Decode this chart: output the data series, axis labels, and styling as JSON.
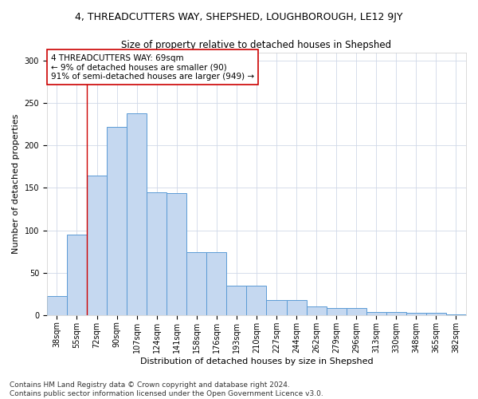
{
  "title": "4, THREADCUTTERS WAY, SHEPSHED, LOUGHBOROUGH, LE12 9JY",
  "subtitle": "Size of property relative to detached houses in Shepshed",
  "xlabel": "Distribution of detached houses by size in Shepshed",
  "ylabel": "Number of detached properties",
  "categories": [
    "38sqm",
    "55sqm",
    "72sqm",
    "90sqm",
    "107sqm",
    "124sqm",
    "141sqm",
    "158sqm",
    "176sqm",
    "193sqm",
    "210sqm",
    "227sqm",
    "244sqm",
    "262sqm",
    "279sqm",
    "296sqm",
    "313sqm",
    "330sqm",
    "348sqm",
    "365sqm",
    "382sqm"
  ],
  "values": [
    22,
    95,
    165,
    222,
    238,
    145,
    144,
    74,
    74,
    35,
    35,
    18,
    18,
    10,
    8,
    8,
    4,
    4,
    3,
    3,
    1
  ],
  "bar_color": "#c5d8f0",
  "bar_edge_color": "#5b9bd5",
  "vline_color": "#cc0000",
  "vline_x_index": 1.5,
  "annotation_text": "4 THREADCUTTERS WAY: 69sqm\n← 9% of detached houses are smaller (90)\n91% of semi-detached houses are larger (949) →",
  "annotation_box_color": "#ffffff",
  "annotation_box_edge": "#cc0000",
  "ylim": [
    0,
    310
  ],
  "yticks": [
    0,
    50,
    100,
    150,
    200,
    250,
    300
  ],
  "footer_line1": "Contains HM Land Registry data © Crown copyright and database right 2024.",
  "footer_line2": "Contains public sector information licensed under the Open Government Licence v3.0.",
  "bg_color": "#ffffff",
  "grid_color": "#d0d8e8",
  "title_fontsize": 9,
  "subtitle_fontsize": 8.5,
  "axis_label_fontsize": 8,
  "tick_fontsize": 7,
  "annotation_fontsize": 7.5,
  "footer_fontsize": 6.5
}
